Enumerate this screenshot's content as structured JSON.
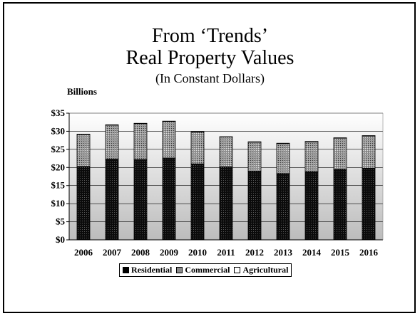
{
  "chart_data": {
    "type": "bar",
    "stacked": true,
    "title_lines": [
      "From ‘Trends’",
      "Real Property Values"
    ],
    "subtitle": "(In Constant Dollars)",
    "ylabel": "Billions",
    "categories": [
      "2006",
      "2007",
      "2008",
      "2009",
      "2010",
      "2011",
      "2012",
      "2013",
      "2014",
      "2015",
      "2016"
    ],
    "series": [
      {
        "name": "Residential",
        "values": [
          20.3,
          22.3,
          22.2,
          22.6,
          21.0,
          20.2,
          19.0,
          18.3,
          18.8,
          19.5,
          19.8
        ],
        "color": "#0a0a0a"
      },
      {
        "name": "Commercial",
        "values": [
          8.8,
          9.4,
          9.9,
          10.1,
          8.8,
          8.2,
          8.0,
          8.3,
          8.3,
          8.6,
          8.9
        ],
        "color": "#8a8a8a"
      },
      {
        "name": "Agricultural",
        "values": [
          0.1,
          0.1,
          0.1,
          0.1,
          0.1,
          0.1,
          0.1,
          0.1,
          0.1,
          0.1,
          0.1
        ],
        "color": "#ffffff"
      }
    ],
    "ylim": [
      0,
      35
    ],
    "y_ticks": [
      "$0",
      "$5",
      "$10",
      "$15",
      "$20",
      "$25",
      "$30",
      "$35"
    ],
    "grid": true,
    "legend_position": "bottom"
  }
}
